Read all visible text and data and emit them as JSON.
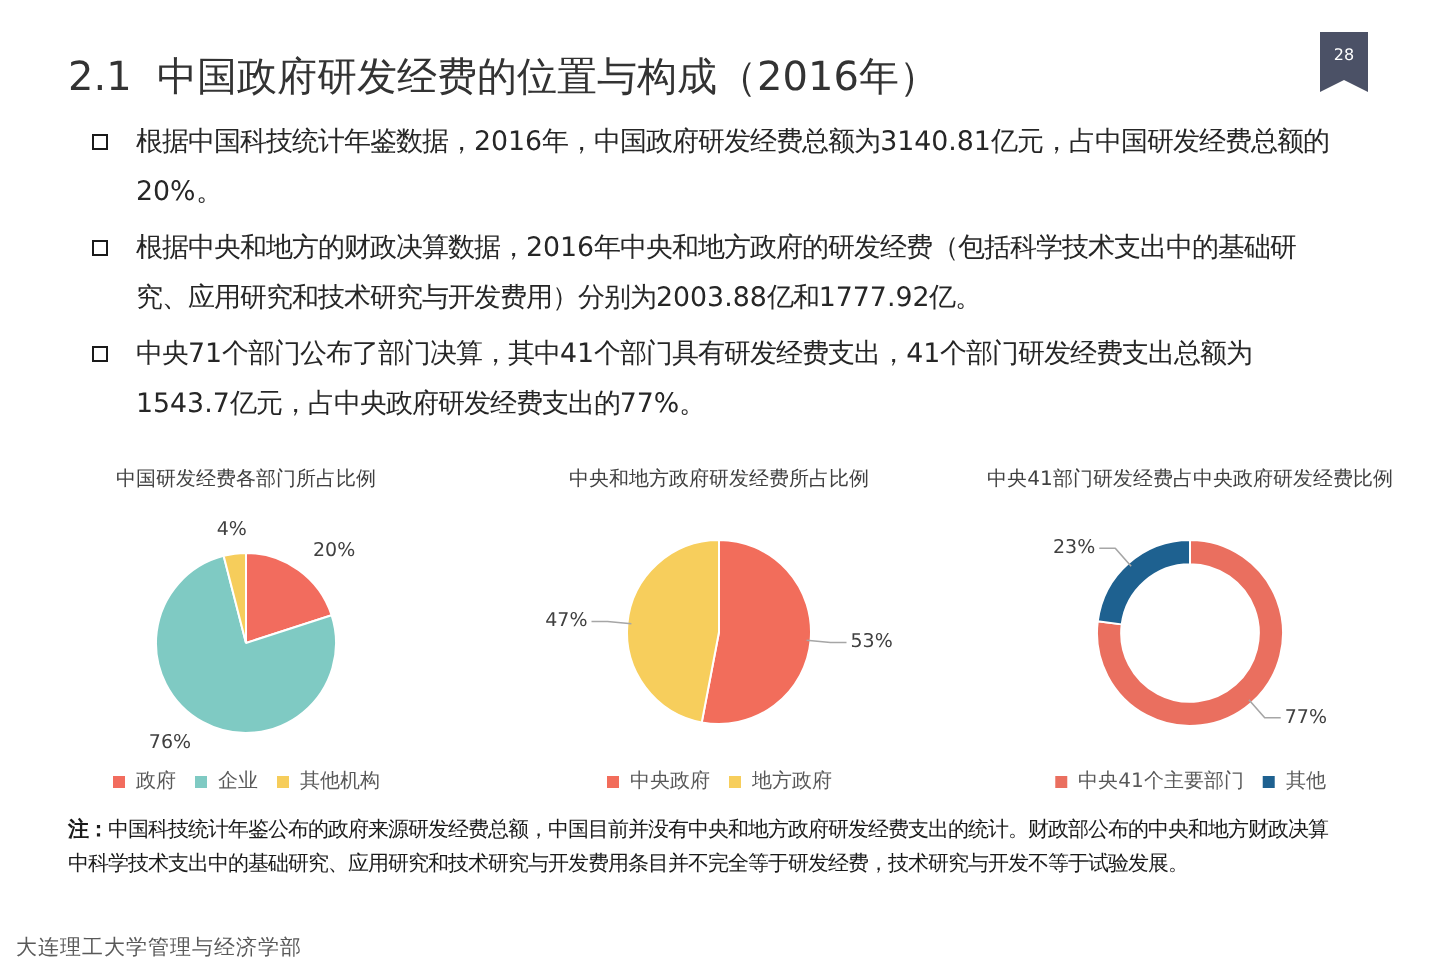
{
  "chart_data": [
    {
      "type": "other",
      "title": "2.1  中国政府研发经费的位置与构成（2016年）",
      "annotations": [
        "根据中国科技统计年鉴数据，2016年，中国政府研发经费总额为3140.81亿元，占中国研发经费总额的20%。",
        "根据中央和地方的财政决算数据，2016年中央和地方政府的研发经费（包括科学技术支出中的基础研究、应用研究和技术研究与开发费用）分别为2003.88亿和1777.92亿。",
        "中央71个部门公布了部门决算，其中41个部门具有研发经费支出，41个部门研发经费支出总额为1543.7亿元，占中央政府研发经费支出的77%。",
        "28"
      ]
    },
    {
      "type": "pie",
      "title": "中国研发经费各部门所占比例",
      "categories": [
        "政府",
        "企业",
        "其他机构"
      ],
      "values": [
        20,
        76,
        4
      ],
      "colors": [
        "#f26c5e",
        "#7fcac3",
        "#f6cd5b"
      ],
      "value_labels": [
        "20%",
        "76%",
        "4%"
      ],
      "legend": "bottom"
    },
    {
      "type": "pie",
      "title": "中央和地方政府研发经费所占比例",
      "categories": [
        "中央政府",
        "地方政府"
      ],
      "values": [
        53,
        47
      ],
      "colors": [
        "#f26d5b",
        "#f7ce5c"
      ],
      "value_labels": [
        "53%",
        "47%"
      ],
      "legend": "bottom"
    },
    {
      "type": "donut",
      "title": "中央41部门研发经费占中央政府研发经费比例",
      "categories": [
        "中央41个主要部门",
        "其他"
      ],
      "values": [
        77,
        23
      ],
      "colors": [
        "#ea6f5f",
        "#1e6190"
      ],
      "value_labels": [
        "77%",
        "23%"
      ],
      "legend": "bottom"
    },
    {
      "type": "other",
      "annotations": [
        "注：中国科技统计年鉴公布的政府来源研发经费总额，中国目前并没有中央和地方政府研发经费支出的统计。财政部公布的中央和地方财政决算中科学技术支出中的基础研究、应用研究和技术研究与开发费用条目并不完全等于研发经费，技术研究与开发不等于试验发展。",
        "大连理工大学管理与经济学部"
      ]
    }
  ]
}
